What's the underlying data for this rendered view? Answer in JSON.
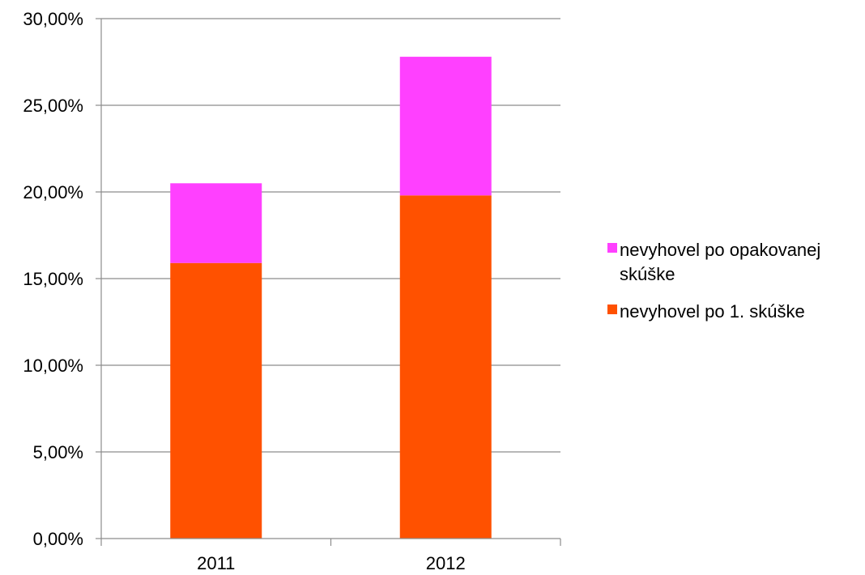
{
  "chart_data": {
    "type": "bar",
    "stacked": true,
    "categories": [
      "2011",
      "2012"
    ],
    "series": [
      {
        "name": "nevyhovel po 1. skúške",
        "values": [
          15.9,
          19.8
        ],
        "color": "#ff5100"
      },
      {
        "name": "nevyhovel po opakovanej skúške",
        "values": [
          4.6,
          8.0
        ],
        "color": "#ff40ff"
      }
    ],
    "ylim": [
      0,
      30
    ],
    "yticks": [
      "0,00%",
      "5,00%",
      "10,00%",
      "15,00%",
      "20,00%",
      "25,00%",
      "30,00%"
    ],
    "grid": true,
    "legend_position": "right",
    "legend": [
      {
        "lines": [
          "nevyhovel po opakovanej",
          "skúške"
        ],
        "color": "#ff40ff"
      },
      {
        "lines": [
          "nevyhovel po 1. skúške"
        ],
        "color": "#ff5100"
      }
    ]
  }
}
